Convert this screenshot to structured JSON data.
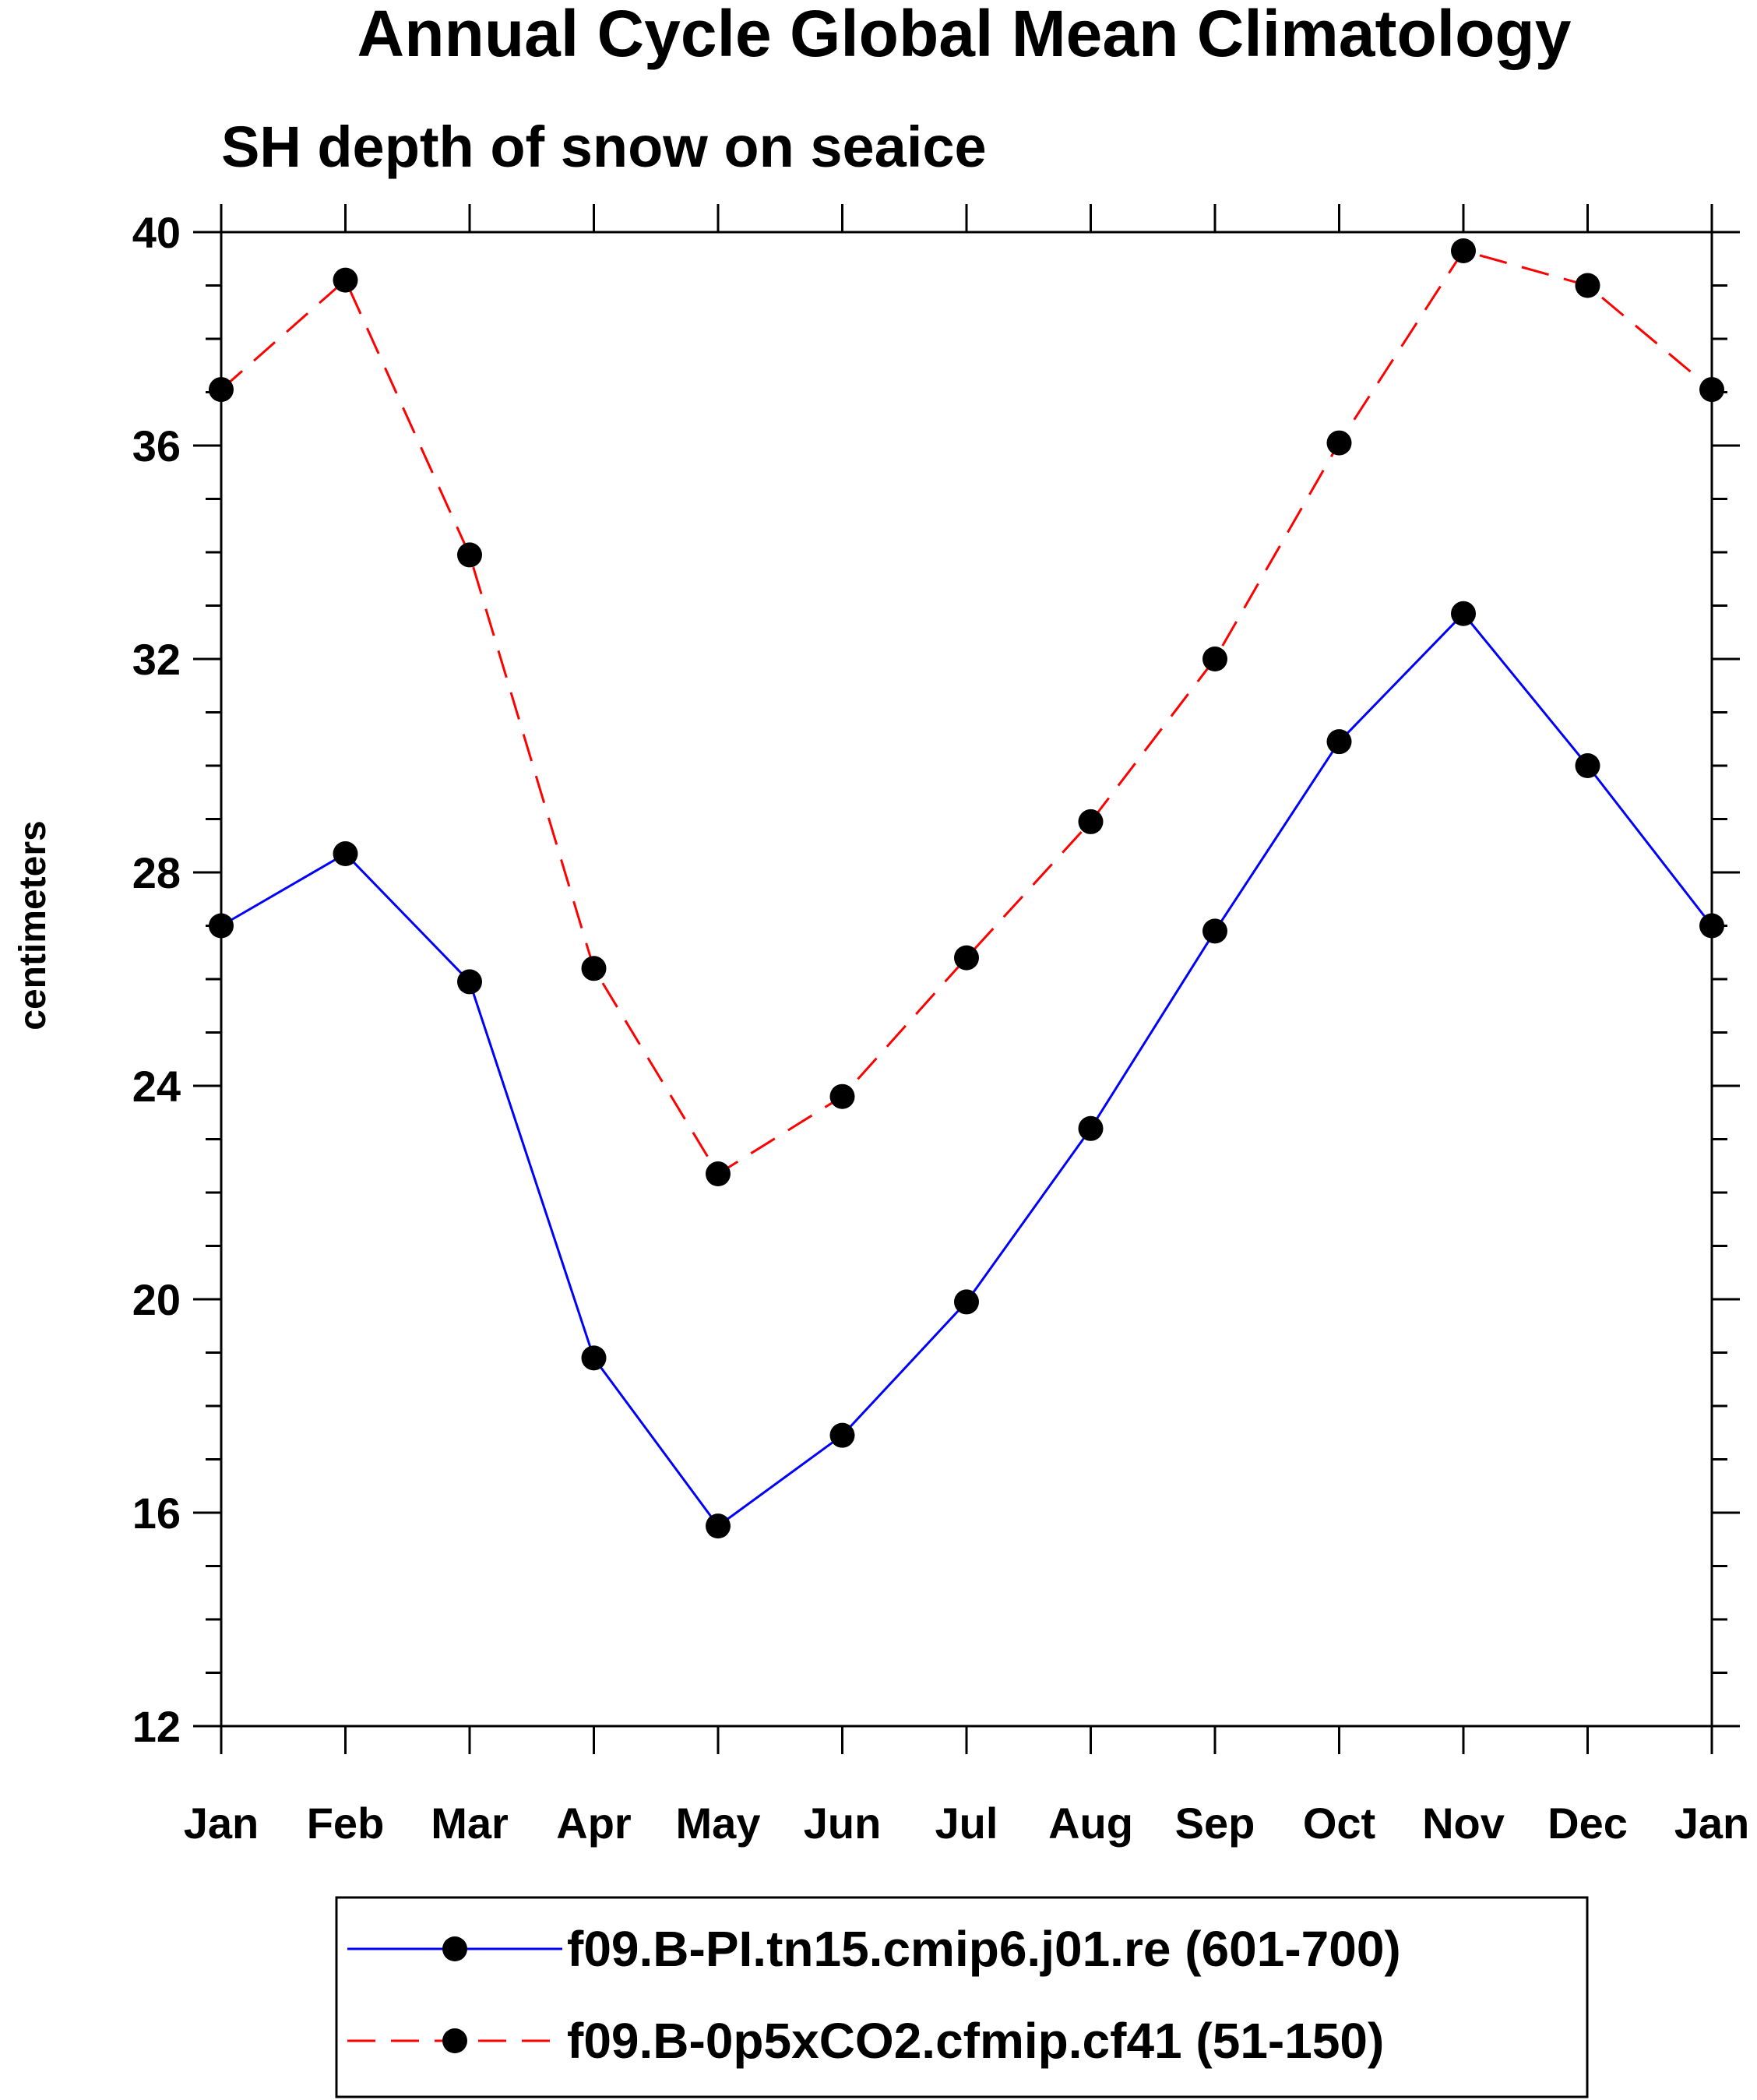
{
  "chart_data": {
    "type": "line",
    "title": "Annual Cycle Global Mean Climatology",
    "subtitle": "SH depth of snow on seaice",
    "xlabel": "",
    "ylabel": "centimeters",
    "categories": [
      "Jan",
      "Feb",
      "Mar",
      "Apr",
      "May",
      "Jun",
      "Jul",
      "Aug",
      "Sep",
      "Oct",
      "Nov",
      "Dec",
      "Jan"
    ],
    "ylim": [
      12,
      40
    ],
    "yticks": [
      "12",
      "16",
      "20",
      "24",
      "28",
      "32",
      "36",
      "40"
    ],
    "y_minor_step": 1,
    "grid": false,
    "legend_position": "bottom",
    "series": [
      {
        "name": "f09.B-PI.tn15.cmip6.j01.re (601-700)",
        "values": [
          27.0,
          28.35,
          25.95,
          18.9,
          15.75,
          17.45,
          19.95,
          23.2,
          26.9,
          30.45,
          32.85,
          30.0,
          27.0
        ],
        "color": "#0000ff",
        "line_style": "solid",
        "marker": "filled-circle"
      },
      {
        "name": "f09.B-0p5xCO2.cfmip.cf41 (51-150)",
        "values": [
          37.05,
          39.1,
          33.95,
          26.2,
          22.35,
          23.8,
          26.4,
          28.95,
          32.0,
          36.05,
          39.65,
          39.0,
          37.05
        ],
        "color": "#ff0000",
        "line_style": "dashed",
        "marker": "filled-circle"
      }
    ]
  }
}
